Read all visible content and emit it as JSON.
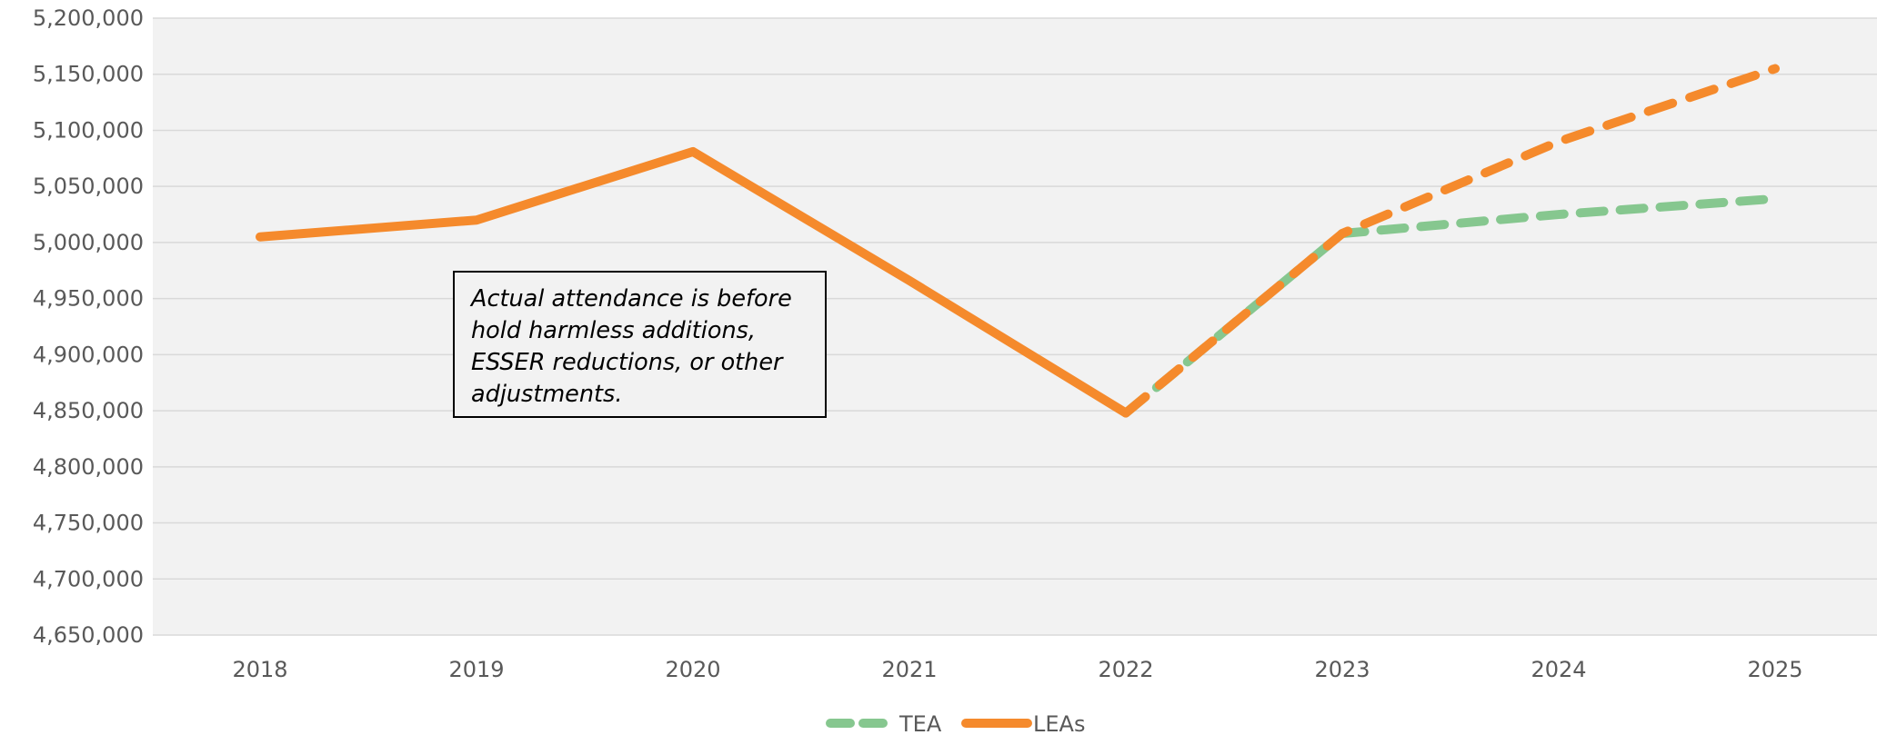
{
  "chart_data": {
    "type": "line",
    "categories": [
      "2018",
      "2019",
      "2020",
      "2021",
      "2022",
      "2023",
      "2024",
      "2025"
    ],
    "ylim": [
      4650000,
      5200000
    ],
    "yticks": [
      4650000,
      4700000,
      4750000,
      4800000,
      4850000,
      4900000,
      4950000,
      5000000,
      5050000,
      5100000,
      5150000,
      5200000
    ],
    "ytick_labels": [
      "4,650,000",
      "4,700,000",
      "4,750,000",
      "4,800,000",
      "4,850,000",
      "4,900,000",
      "4,950,000",
      "5,000,000",
      "5,050,000",
      "5,100,000",
      "5,150,000",
      "5,200,000"
    ],
    "grid": true,
    "legend_position": "bottom",
    "series": [
      {
        "name": "TEA",
        "color": "#86c78f",
        "style": "dashed",
        "values": [
          null,
          null,
          null,
          null,
          4848000,
          5008000,
          5025000,
          5039000
        ]
      },
      {
        "name": "LEAs",
        "color": "#f58a2c",
        "style": "solid-then-dashed",
        "dashed_from": "2022",
        "values": [
          5005000,
          5020000,
          5081000,
          4966000,
          4848000,
          5008000,
          5090000,
          5155000
        ]
      }
    ],
    "annotation": "Actual attendance is before hold harmless additions, ESSER reductions, or other adjustments."
  }
}
